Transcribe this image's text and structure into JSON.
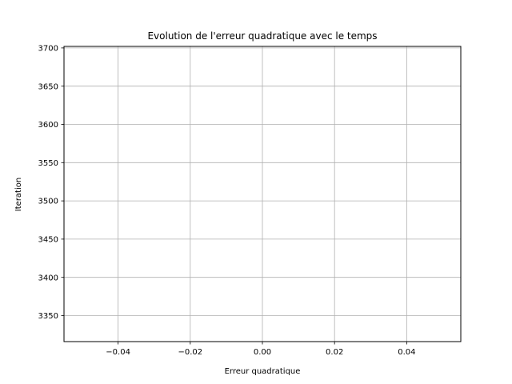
{
  "chart_data": {
    "type": "scatter",
    "title": "Evolution de l'erreur quadratique avec le temps",
    "xlabel": "Erreur quadratique",
    "ylabel": "Iteration",
    "xlim": [
      -0.055,
      0.055
    ],
    "ylim": [
      3316,
      3702
    ],
    "grid": true,
    "xticks": [
      -0.04,
      -0.02,
      0.0,
      0.02,
      0.04
    ],
    "xtick_labels": [
      "−0.04",
      "−0.02",
      "0.00",
      "0.02",
      "0.04"
    ],
    "yticks": [
      3350,
      3400,
      3450,
      3500,
      3550,
      3600,
      3650,
      3700
    ],
    "ytick_labels": [
      "3350",
      "3400",
      "3450",
      "3500",
      "3550",
      "3600",
      "3650",
      "3700"
    ],
    "series": [
      {
        "x": [],
        "y": []
      }
    ]
  }
}
